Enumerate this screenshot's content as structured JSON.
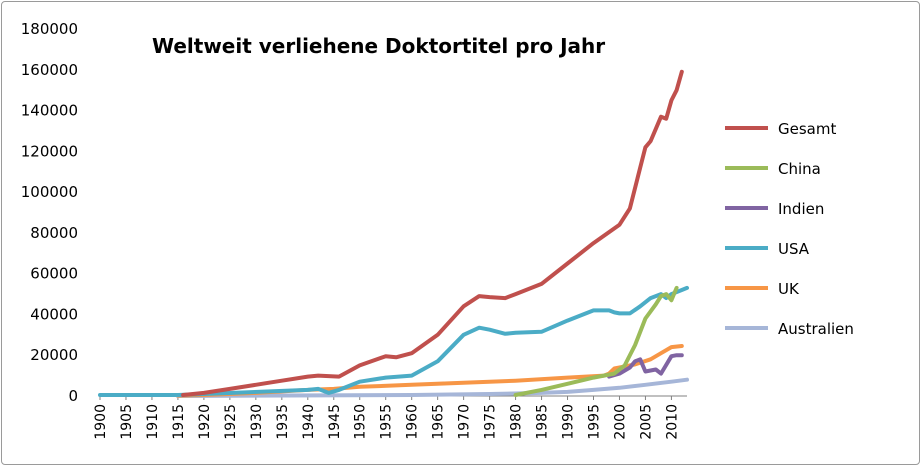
{
  "chart_data": {
    "type": "line",
    "title": "Weltweit verliehene Doktortitel pro Jahr",
    "xlabel": "",
    "ylabel": "",
    "ylim": [
      0,
      180000
    ],
    "yticks": [
      "0",
      "20000",
      "40000",
      "60000",
      "80000",
      "100000",
      "120000",
      "140000",
      "160000",
      "180000"
    ],
    "xlim": [
      1900,
      2013
    ],
    "xticks": [
      "1900",
      "1905",
      "1910",
      "1915",
      "1920",
      "1925",
      "1930",
      "1935",
      "1940",
      "1945",
      "1950",
      "1955",
      "1960",
      "1965",
      "1970",
      "1975",
      "1980",
      "1985",
      "1990",
      "1995",
      "2000",
      "2005",
      "2010"
    ],
    "grid": false,
    "legend_position": "right",
    "series": [
      {
        "name": "Gesamt",
        "color": "#c0504d",
        "points": [
          [
            1916,
            500
          ],
          [
            1920,
            1500
          ],
          [
            1925,
            3500
          ],
          [
            1930,
            5500
          ],
          [
            1935,
            7500
          ],
          [
            1940,
            9500
          ],
          [
            1942,
            10000
          ],
          [
            1946,
            9500
          ],
          [
            1950,
            15000
          ],
          [
            1955,
            19500
          ],
          [
            1957,
            19000
          ],
          [
            1960,
            21000
          ],
          [
            1965,
            30000
          ],
          [
            1970,
            44000
          ],
          [
            1973,
            49000
          ],
          [
            1975,
            48500
          ],
          [
            1978,
            48000
          ],
          [
            1980,
            50000
          ],
          [
            1985,
            55000
          ],
          [
            1990,
            65000
          ],
          [
            1995,
            75000
          ],
          [
            2000,
            84000
          ],
          [
            2002,
            92000
          ],
          [
            2004,
            112000
          ],
          [
            2005,
            122000
          ],
          [
            2006,
            125000
          ],
          [
            2008,
            137000
          ],
          [
            2009,
            136000
          ],
          [
            2010,
            145000
          ],
          [
            2011,
            150000
          ],
          [
            2012,
            159000
          ]
        ]
      },
      {
        "name": "China",
        "color": "#9bbb59",
        "points": [
          [
            1980,
            500
          ],
          [
            1985,
            3000
          ],
          [
            1990,
            6000
          ],
          [
            1995,
            9000
          ],
          [
            1999,
            11000
          ],
          [
            2001,
            15000
          ],
          [
            2003,
            25000
          ],
          [
            2005,
            38000
          ],
          [
            2007,
            45000
          ],
          [
            2008,
            49000
          ],
          [
            2009,
            50000
          ],
          [
            2010,
            47000
          ],
          [
            2011,
            53000
          ]
        ]
      },
      {
        "name": "Indien",
        "color": "#8064a2",
        "points": [
          [
            1998,
            9500
          ],
          [
            2000,
            11000
          ],
          [
            2002,
            14000
          ],
          [
            2003,
            17000
          ],
          [
            2004,
            18000
          ],
          [
            2005,
            12000
          ],
          [
            2006,
            12500
          ],
          [
            2007,
            13000
          ],
          [
            2008,
            11000
          ],
          [
            2010,
            19500
          ],
          [
            2011,
            20000
          ],
          [
            2012,
            20000
          ]
        ]
      },
      {
        "name": "USA",
        "color": "#4bacc6",
        "points": [
          [
            1900,
            500
          ],
          [
            1915,
            500
          ],
          [
            1940,
            3000
          ],
          [
            1942,
            3500
          ],
          [
            1944,
            1500
          ],
          [
            1946,
            3000
          ],
          [
            1950,
            7000
          ],
          [
            1955,
            9000
          ],
          [
            1960,
            10000
          ],
          [
            1965,
            17000
          ],
          [
            1970,
            30000
          ],
          [
            1973,
            33500
          ],
          [
            1975,
            32500
          ],
          [
            1978,
            30500
          ],
          [
            1980,
            31000
          ],
          [
            1985,
            31500
          ],
          [
            1990,
            37000
          ],
          [
            1995,
            42000
          ],
          [
            1998,
            42000
          ],
          [
            1999,
            41000
          ],
          [
            2000,
            40500
          ],
          [
            2002,
            40500
          ],
          [
            2004,
            44000
          ],
          [
            2006,
            48000
          ],
          [
            2008,
            50000
          ],
          [
            2009,
            48000
          ],
          [
            2010,
            50000
          ],
          [
            2012,
            52000
          ],
          [
            2013,
            53000
          ]
        ]
      },
      {
        "name": "UK",
        "color": "#f79646",
        "points": [
          [
            1915,
            200
          ],
          [
            1920,
            500
          ],
          [
            1930,
            1500
          ],
          [
            1940,
            3000
          ],
          [
            1945,
            3500
          ],
          [
            1950,
            4500
          ],
          [
            1960,
            5500
          ],
          [
            1970,
            6500
          ],
          [
            1980,
            7500
          ],
          [
            1990,
            9000
          ],
          [
            1997,
            10000
          ],
          [
            1998,
            11000
          ],
          [
            1999,
            13500
          ],
          [
            2001,
            14500
          ],
          [
            2003,
            15500
          ],
          [
            2006,
            18000
          ],
          [
            2008,
            21000
          ],
          [
            2010,
            24000
          ],
          [
            2012,
            24500
          ]
        ]
      },
      {
        "name": "Australien",
        "color": "#a6b6d8",
        "points": [
          [
            1915,
            0
          ],
          [
            1960,
            500
          ],
          [
            1975,
            1000
          ],
          [
            1985,
            1500
          ],
          [
            1990,
            2000
          ],
          [
            1995,
            3000
          ],
          [
            2000,
            4000
          ],
          [
            2005,
            5500
          ],
          [
            2010,
            7000
          ],
          [
            2013,
            8000
          ]
        ]
      }
    ]
  }
}
